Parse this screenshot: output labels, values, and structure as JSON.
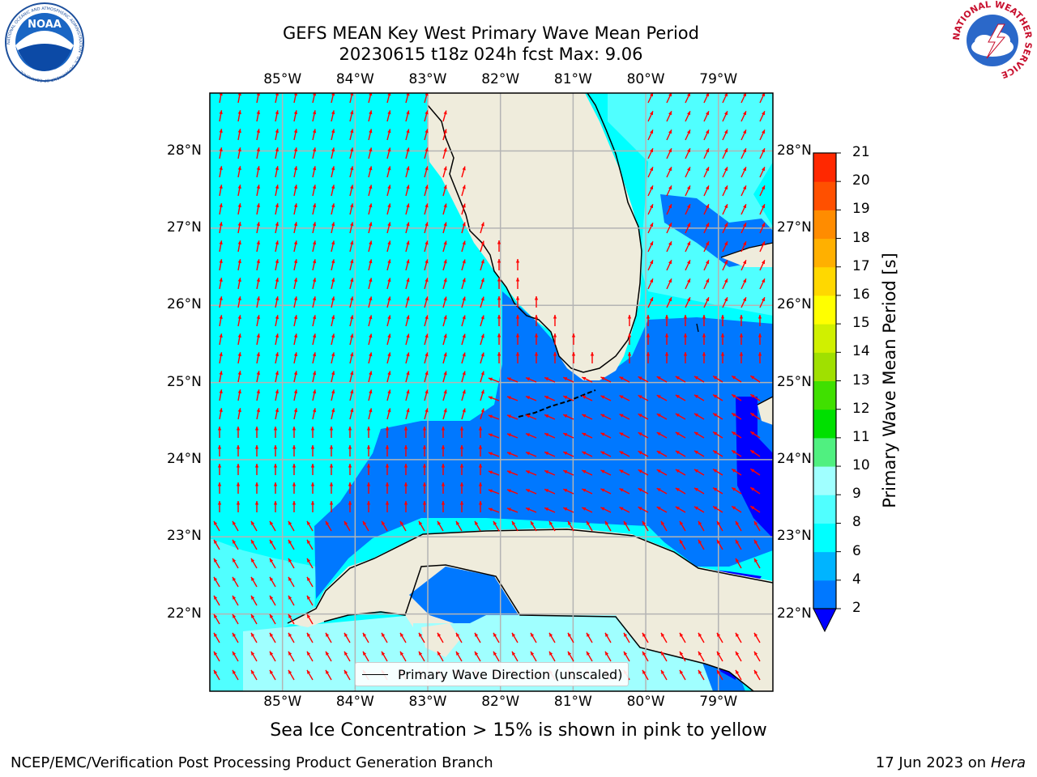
{
  "header": {
    "title_line1": "GEFS MEAN Key West Primary Wave Mean Period",
    "title_line2": "20230615 t18z 024h fcst   Max: 9.06"
  },
  "logos": {
    "noaa_text": "NOAA",
    "noaa_ring_text": "NATIONAL OCEANIC AND ATMOSPHERIC ADMINISTRATION · U.S. DEPARTMENT OF COMMERCE",
    "nws_ring_text": "NATIONAL WEATHER SERVICE"
  },
  "map": {
    "lon_labels": [
      "85°W",
      "84°W",
      "83°W",
      "82°W",
      "81°W",
      "80°W",
      "79°W"
    ],
    "lat_labels": [
      "28°N",
      "27°N",
      "26°N",
      "25°N",
      "24°N",
      "23°N",
      "22°N"
    ],
    "lon_values": [
      -85,
      -84,
      -83,
      -82,
      -81,
      -80,
      -79
    ],
    "lat_values": [
      28,
      27,
      26,
      25,
      24,
      23,
      22
    ],
    "extent": {
      "lon_min": -86.0,
      "lon_max": -78.25,
      "lat_min": 21.0,
      "lat_max": 28.75
    },
    "land_color": "#efecdc",
    "arrow_color": "#ff0000",
    "grid": true
  },
  "legend": {
    "label": "Primary Wave Direction (unscaled)"
  },
  "colorbar": {
    "label": "Primary Wave Mean Period [s]",
    "ticks": [
      "2",
      "4",
      "6",
      "8",
      "9",
      "10",
      "11",
      "12",
      "13",
      "14",
      "15",
      "16",
      "17",
      "18",
      "19",
      "20",
      "21"
    ],
    "colors": [
      "#0078ff",
      "#00b4ff",
      "#00ffff",
      "#50ffff",
      "#a0ffff",
      "#50f080",
      "#00e000",
      "#40e000",
      "#a0e000",
      "#d0f000",
      "#ffff00",
      "#ffd800",
      "#ffb000",
      "#ff8c00",
      "#ff5000",
      "#ff2800"
    ],
    "extend_color": "#0000ff"
  },
  "caption": "Sea Ice Concentration > 15% is shown in pink to yellow",
  "footer": {
    "org": "NCEP/EMC/Verification Post Processing Product Generation Branch",
    "date_prefix": "17 Jun 2023 on",
    "machine": "Hera"
  }
}
